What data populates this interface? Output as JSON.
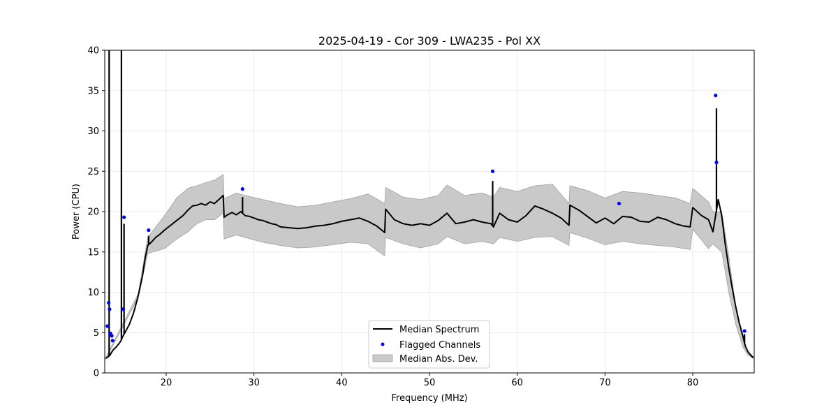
{
  "chart_data": {
    "type": "line",
    "title": "2025-04-19 - Cor 309 - LWA235 - Pol XX",
    "xlabel": "Frequency (MHz)",
    "ylabel": "Power (CPU)",
    "xlim": [
      13,
      87
    ],
    "ylim": [
      0,
      40
    ],
    "xticks": [
      20,
      30,
      40,
      50,
      60,
      70,
      80
    ],
    "yticks": [
      0,
      5,
      10,
      15,
      20,
      25,
      30,
      35,
      40
    ],
    "grid": true,
    "legend_position": "bottom-center",
    "colors": {
      "median": "#000000",
      "flagged": "#0000ff",
      "band": "#bbbbbb"
    },
    "series": [
      {
        "name": "Median Spectrum",
        "type": "line",
        "x": [
          13.1,
          13.4,
          13.6,
          13.7,
          13.8,
          14.0,
          14.3,
          14.6,
          14.85,
          15.0,
          15.3,
          15.8,
          16.3,
          16.8,
          17.3,
          17.6,
          17.9,
          18.3,
          18.8,
          19.3,
          19.8,
          20.5,
          21.2,
          21.9,
          22.5,
          23.0,
          23.5,
          24.0,
          24.5,
          25.0,
          25.5,
          26.0,
          26.5,
          26.6,
          27.0,
          27.5,
          28.0,
          28.5,
          29.0,
          29.5,
          30.0,
          30.5,
          31.0,
          31.5,
          32.0,
          32.5,
          33.0,
          34.0,
          35.0,
          36.0,
          37.0,
          38.0,
          39.0,
          40.0,
          41.0,
          42.0,
          43.0,
          44.0,
          44.9,
          45.0,
          46.0,
          47.0,
          48.0,
          49.0,
          50.0,
          51.0,
          52.0,
          53.0,
          54.0,
          55.0,
          56.0,
          57.0,
          57.3,
          58.0,
          59.0,
          60.0,
          61.0,
          62.0,
          63.0,
          64.0,
          65.0,
          65.9,
          66.0,
          67.0,
          68.0,
          69.0,
          70.0,
          71.0,
          72.0,
          73.0,
          74.0,
          75.0,
          76.0,
          77.0,
          78.0,
          79.0,
          79.7,
          80.0,
          81.0,
          81.8,
          82.3,
          82.9,
          83.3,
          83.7,
          84.1,
          84.5,
          84.9,
          85.3,
          85.7,
          86.0,
          86.3,
          86.6,
          86.9
        ],
        "y": [
          1.8,
          2.0,
          2.2,
          2.4,
          2.6,
          2.9,
          3.2,
          3.6,
          4.0,
          4.4,
          5.0,
          6.0,
          7.5,
          9.5,
          12.0,
          14.2,
          15.8,
          16.2,
          16.8,
          17.2,
          17.7,
          18.3,
          18.9,
          19.5,
          20.2,
          20.7,
          20.8,
          21.0,
          20.8,
          21.2,
          21.0,
          21.5,
          22.0,
          19.3,
          19.6,
          19.9,
          19.6,
          20.0,
          19.5,
          19.4,
          19.2,
          19.0,
          18.9,
          18.7,
          18.5,
          18.4,
          18.1,
          18.0,
          17.9,
          18.0,
          18.2,
          18.3,
          18.5,
          18.8,
          19.0,
          19.2,
          18.8,
          18.2,
          17.4,
          20.3,
          19.0,
          18.5,
          18.3,
          18.5,
          18.3,
          18.9,
          19.8,
          18.5,
          18.7,
          19.0,
          18.7,
          18.5,
          18.1,
          19.8,
          19.0,
          18.7,
          19.5,
          20.7,
          20.3,
          19.8,
          19.2,
          18.3,
          20.8,
          20.2,
          19.4,
          18.6,
          19.2,
          18.5,
          19.4,
          19.3,
          18.8,
          18.7,
          19.3,
          19.0,
          18.5,
          18.2,
          18.1,
          20.5,
          19.5,
          19.0,
          17.5,
          21.5,
          19.5,
          16.0,
          13.0,
          10.5,
          8.2,
          6.2,
          4.6,
          3.3,
          2.6,
          2.2,
          1.9
        ]
      },
      {
        "name": "Flagged Channels",
        "type": "scatter",
        "x": [
          13.3,
          13.45,
          13.55,
          13.65,
          13.8,
          13.9,
          15.1,
          15.2,
          18.0,
          28.7,
          57.2,
          71.6,
          82.6,
          82.7,
          85.9
        ],
        "y": [
          5.8,
          8.7,
          7.9,
          4.9,
          4.6,
          4.0,
          7.9,
          19.3,
          17.7,
          22.8,
          25.0,
          21.0,
          34.4,
          26.1,
          5.2
        ]
      },
      {
        "name": "Median Abs. Dev.",
        "type": "band",
        "x": [
          13.1,
          16.8,
          17.9,
          19.8,
          21.2,
          22.5,
          23.5,
          24.5,
          25.5,
          26.5,
          26.6,
          28.0,
          29.0,
          31.0,
          33.0,
          35.0,
          37.0,
          39.0,
          41.0,
          43.0,
          44.9,
          45.0,
          47.0,
          49.0,
          51.0,
          52.0,
          54.0,
          56.0,
          57.3,
          58.0,
          60.0,
          62.0,
          64.0,
          65.9,
          66.0,
          68.0,
          70.0,
          72.0,
          74.0,
          76.0,
          78.0,
          79.7,
          80.0,
          81.8,
          82.3,
          83.3,
          84.1,
          84.9,
          85.7,
          86.3,
          86.9
        ],
        "lower": [
          1.7,
          9.3,
          14.8,
          15.4,
          16.6,
          17.5,
          18.5,
          19.0,
          19.0,
          19.8,
          16.6,
          17.1,
          16.8,
          16.2,
          15.8,
          15.5,
          15.6,
          15.9,
          16.2,
          16.0,
          14.5,
          16.8,
          16.0,
          15.5,
          16.0,
          16.9,
          16.0,
          16.3,
          16.0,
          16.8,
          16.3,
          16.8,
          16.9,
          15.8,
          17.4,
          16.7,
          15.9,
          16.3,
          16.0,
          15.8,
          15.6,
          15.3,
          17.8,
          15.4,
          16.0,
          15.0,
          10.0,
          6.0,
          3.2,
          2.2,
          1.8
        ],
        "upper": [
          1.9,
          9.8,
          16.8,
          19.5,
          21.7,
          22.9,
          23.2,
          23.6,
          23.9,
          24.6,
          21.6,
          22.3,
          22.0,
          21.5,
          21.0,
          20.6,
          20.8,
          21.2,
          21.6,
          22.2,
          21.0,
          23.0,
          21.8,
          21.5,
          22.0,
          23.3,
          22.0,
          22.3,
          21.8,
          23.0,
          22.5,
          23.2,
          23.4,
          21.0,
          23.2,
          22.6,
          21.7,
          22.5,
          22.3,
          22.0,
          21.7,
          21.0,
          22.9,
          21.2,
          20.0,
          20.0,
          14.5,
          8.2,
          4.0,
          2.7,
          2.0
        ]
      }
    ],
    "spikes": [
      {
        "x": 13.5,
        "y": 40.0
      },
      {
        "x": 14.9,
        "y": 40.0
      },
      {
        "x": 15.2,
        "y": 18.5
      },
      {
        "x": 18.0,
        "y": 17.0
      },
      {
        "x": 28.7,
        "y": 21.8
      },
      {
        "x": 57.2,
        "y": 23.8
      },
      {
        "x": 82.7,
        "y": 32.8
      },
      {
        "x": 85.9,
        "y": 4.8
      }
    ]
  }
}
